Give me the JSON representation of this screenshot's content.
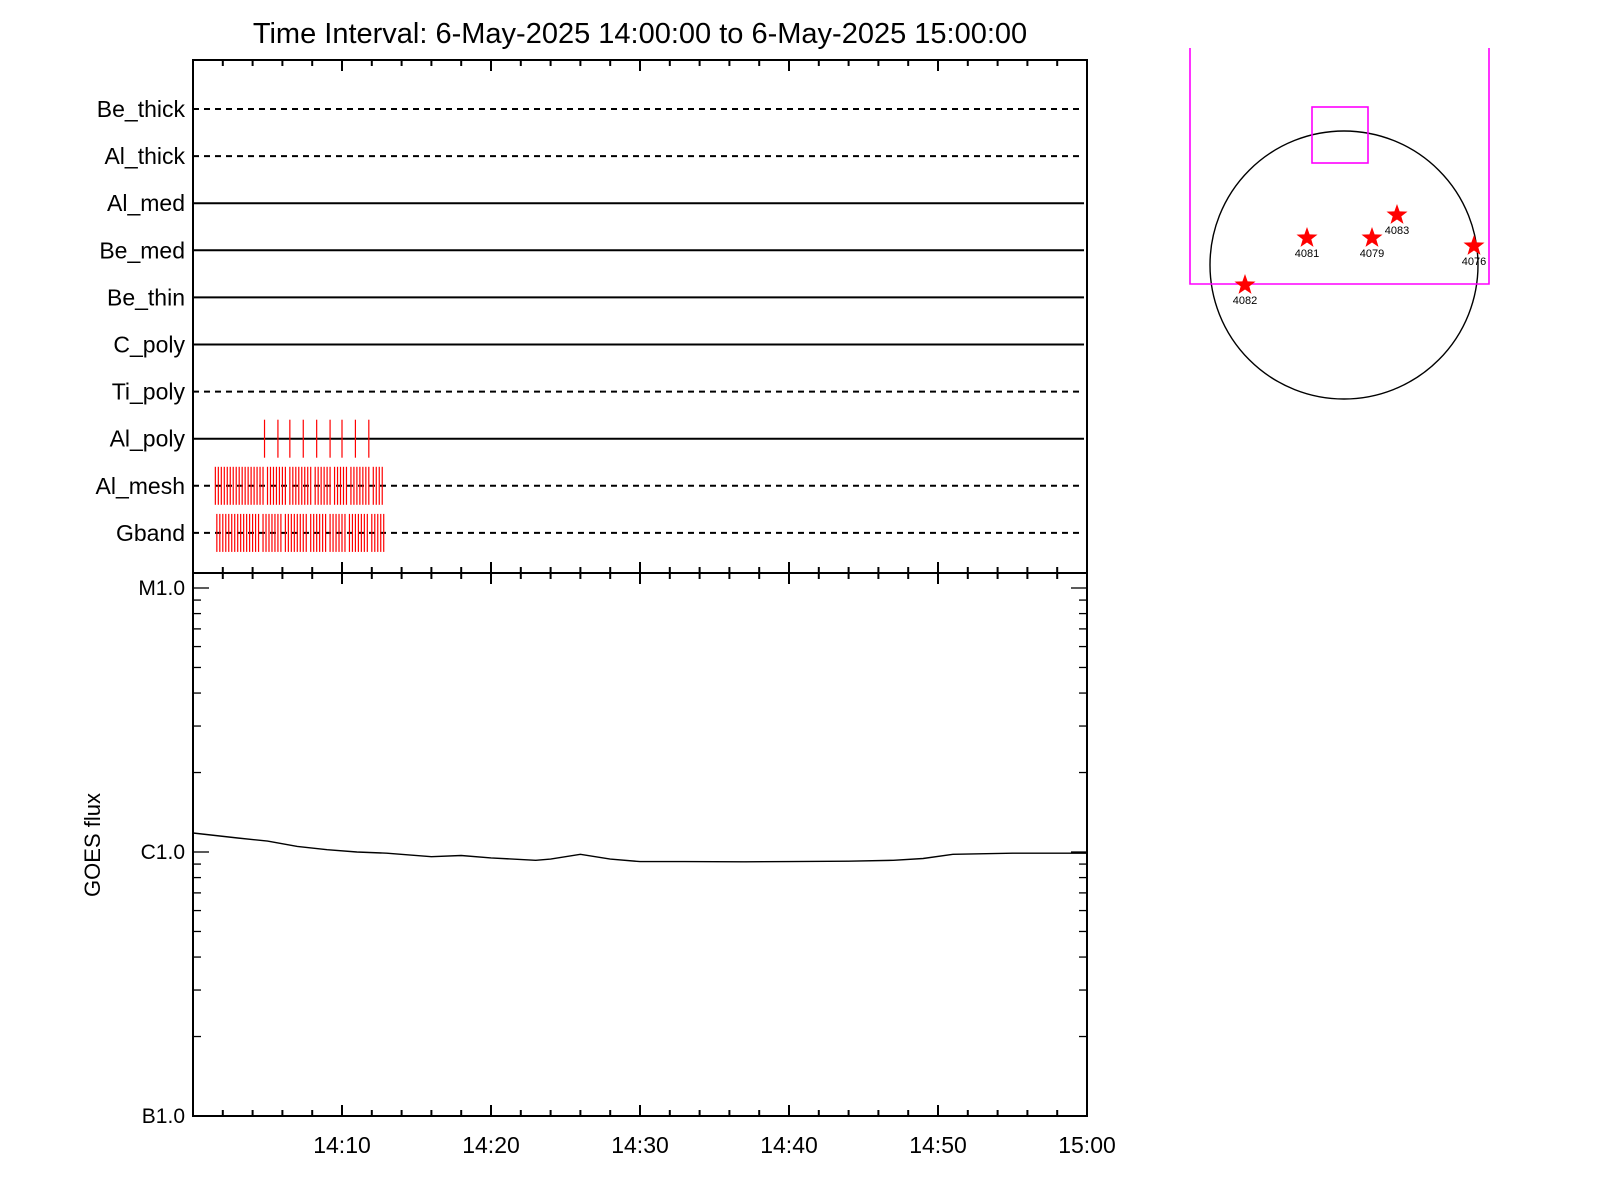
{
  "title": "Time Interval:  6-May-2025 14:00:00 to  6-May-2025 15:00:00",
  "colors": {
    "axis": "#000000",
    "marks": "#ff0000",
    "fov": "#ff00ff",
    "disk": "#000000"
  },
  "chart_data": [
    {
      "type": "event-timeline",
      "x_range": [
        "14:00",
        "15:00"
      ],
      "x_tick_labels": [
        "14:10",
        "14:20",
        "14:30",
        "14:40",
        "14:50",
        "15:00"
      ],
      "channels": [
        {
          "name": "Be_thick",
          "style": "dashed",
          "events": []
        },
        {
          "name": "Al_thick",
          "style": "dashed",
          "events": []
        },
        {
          "name": "Al_med",
          "style": "solid",
          "events": []
        },
        {
          "name": "Be_med",
          "style": "solid",
          "events": []
        },
        {
          "name": "Be_thin",
          "style": "solid",
          "events": []
        },
        {
          "name": "C_poly",
          "style": "solid",
          "events": []
        },
        {
          "name": "Ti_poly",
          "style": "dashed",
          "events": []
        },
        {
          "name": "Al_poly",
          "style": "solid",
          "events": [
            4.8,
            5.7,
            6.5,
            7.4,
            8.3,
            9.2,
            10.0,
            10.9,
            11.8
          ]
        },
        {
          "name": "Al_mesh",
          "style": "dashed",
          "events": [
            1.5,
            1.7,
            1.9,
            2.1,
            2.3,
            2.5,
            2.7,
            2.9,
            3.1,
            3.3,
            3.5,
            3.7,
            3.9,
            4.1,
            4.3,
            4.5,
            4.7,
            5.0,
            5.2,
            5.4,
            5.6,
            5.8,
            6.0,
            6.2,
            6.5,
            6.7,
            6.9,
            7.1,
            7.3,
            7.5,
            7.7,
            7.9,
            8.2,
            8.4,
            8.6,
            8.8,
            9.0,
            9.2,
            9.5,
            9.7,
            9.9,
            10.1,
            10.3,
            10.6,
            10.8,
            11.0,
            11.2,
            11.4,
            11.6,
            11.8,
            12.1,
            12.3,
            12.5,
            12.7
          ]
        },
        {
          "name": "Gband",
          "style": "dashed",
          "events": [
            1.6,
            1.8,
            2.0,
            2.2,
            2.4,
            2.6,
            2.8,
            3.0,
            3.2,
            3.4,
            3.6,
            3.8,
            4.0,
            4.2,
            4.4,
            4.7,
            4.9,
            5.1,
            5.3,
            5.5,
            5.7,
            5.9,
            6.2,
            6.4,
            6.6,
            6.8,
            7.0,
            7.2,
            7.4,
            7.6,
            7.9,
            8.1,
            8.3,
            8.5,
            8.7,
            8.9,
            9.2,
            9.4,
            9.6,
            9.8,
            10.0,
            10.2,
            10.5,
            10.7,
            10.9,
            11.1,
            11.3,
            11.5,
            11.7,
            12.0,
            12.2,
            12.4,
            12.6,
            12.8
          ]
        }
      ]
    },
    {
      "type": "line",
      "scale": "log",
      "ylabel": "GOES flux",
      "y_tick_labels": [
        "B1.0",
        "C1.0",
        "M1.0"
      ],
      "ylim": [
        1e-07,
        1e-05
      ],
      "x_range": [
        "14:00",
        "15:00"
      ],
      "x_tick_labels": [
        "14:10",
        "14:20",
        "14:30",
        "14:40",
        "14:50",
        "15:00"
      ],
      "x_minutes": [
        0,
        3,
        5,
        7,
        9,
        11,
        13,
        16,
        18,
        20,
        23,
        24,
        26,
        28,
        30,
        33,
        37,
        40,
        44,
        47,
        49,
        51,
        55,
        60
      ],
      "y": [
        1.18e-06,
        1.13e-06,
        1.1e-06,
        1.05e-06,
        1.02e-06,
        1e-06,
        9.9e-07,
        9.6e-07,
        9.7e-07,
        9.5e-07,
        9.3e-07,
        9.4e-07,
        9.8e-07,
        9.4e-07,
        9.2e-07,
        9.2e-07,
        9.18e-07,
        9.2e-07,
        9.23e-07,
        9.3e-07,
        9.45e-07,
        9.8e-07,
        9.9e-07,
        9.9e-07
      ]
    },
    {
      "type": "disk-map",
      "regions": [
        {
          "label": "4082"
        },
        {
          "label": "4081"
        },
        {
          "label": "4079"
        },
        {
          "label": "4083"
        },
        {
          "label": "4076"
        }
      ]
    }
  ]
}
